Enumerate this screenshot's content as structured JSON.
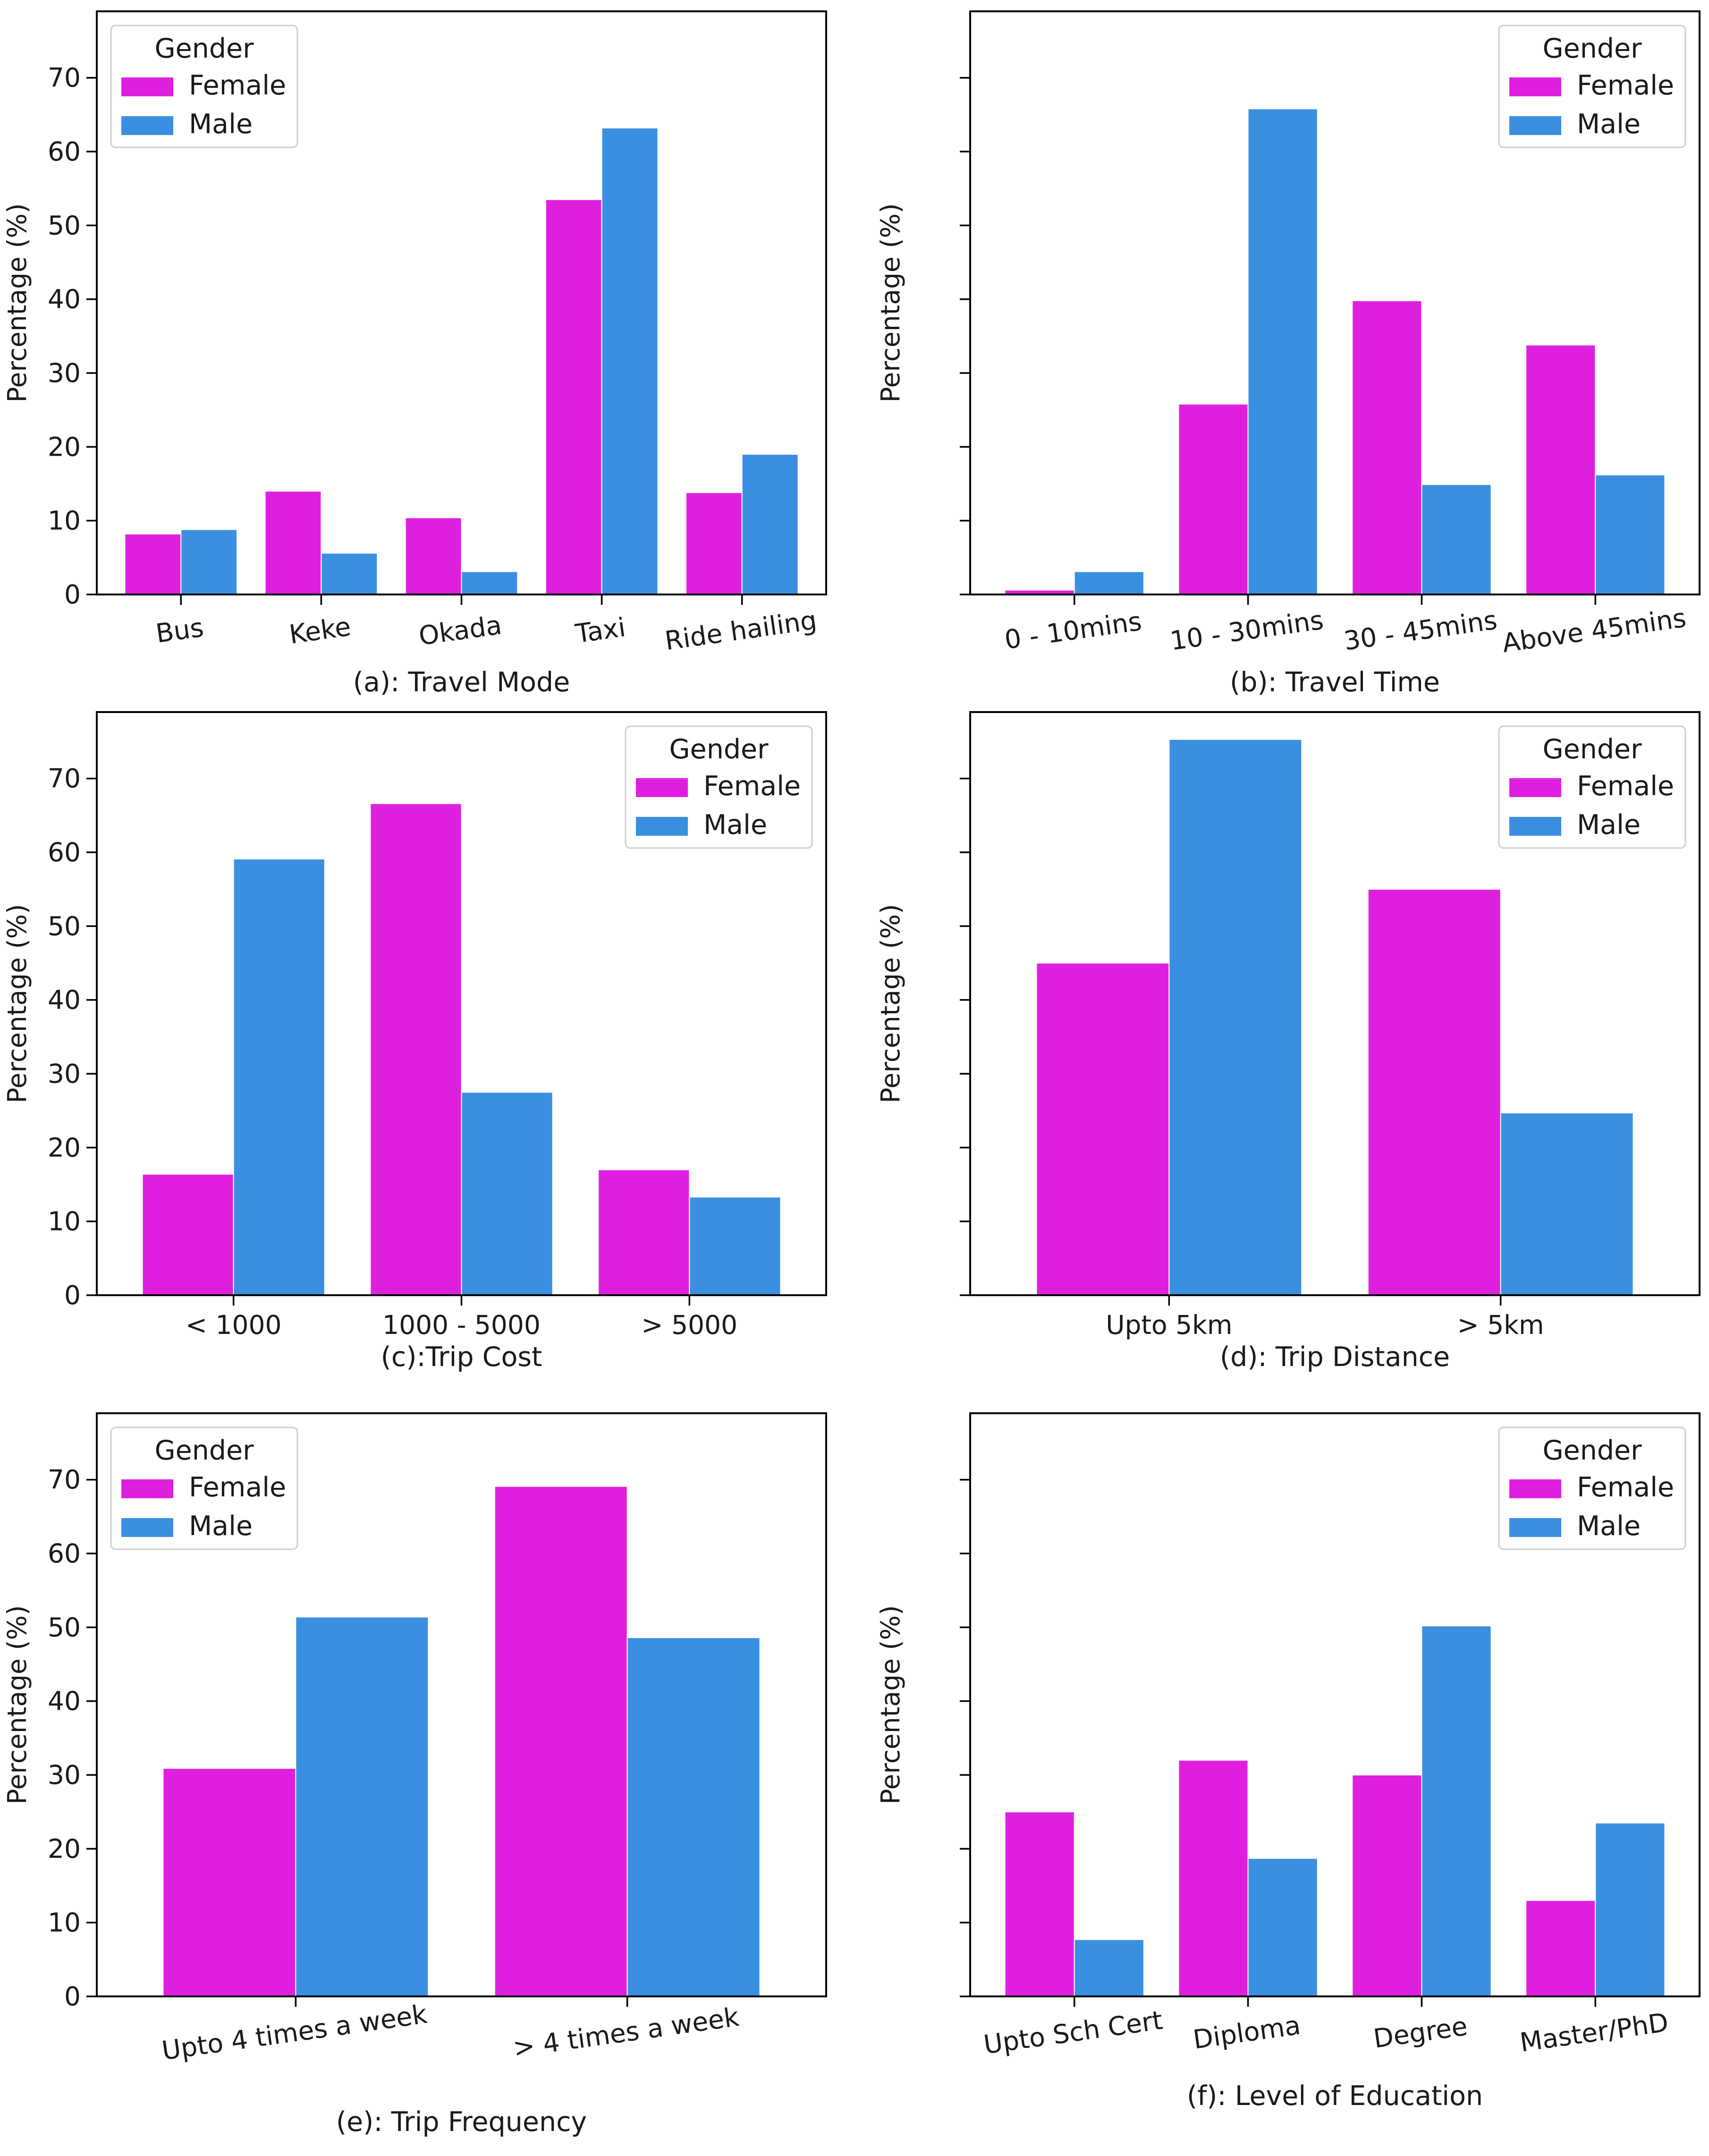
{
  "legend": {
    "title": "Gender",
    "entries": [
      {
        "name": "Female",
        "color": "#de20de"
      },
      {
        "name": "Male",
        "color": "#3b8fe0"
      }
    ]
  },
  "chart_data": [
    {
      "type": "bar",
      "title": "(a): Travel Mode",
      "xlabel": "(a): Travel Mode",
      "ylabel": "Percentage (%)",
      "categories": [
        "Bus",
        "Keke",
        "Okada",
        "Taxi",
        "Ride hailing"
      ],
      "series": [
        {
          "name": "Female",
          "values": [
            8.2,
            14.0,
            10.4,
            53.5,
            13.8
          ]
        },
        {
          "name": "Male",
          "values": [
            8.8,
            5.6,
            3.1,
            63.2,
            19.0
          ]
        }
      ],
      "ylim": [
        0,
        79
      ],
      "yticks": [
        0,
        10,
        20,
        30,
        40,
        50,
        60,
        70
      ],
      "show_tick_labels": true,
      "rotate_xticks": true,
      "legend_position": "top-left"
    },
    {
      "type": "bar",
      "title": "(b): Travel Time",
      "xlabel": "(b): Travel Time",
      "ylabel": "Percentage (%)",
      "categories": [
        "0 - 10mins",
        "10 - 30mins",
        "30 - 45mins",
        "Above 45mins"
      ],
      "series": [
        {
          "name": "Female",
          "values": [
            0.6,
            25.8,
            39.8,
            33.8
          ]
        },
        {
          "name": "Male",
          "values": [
            3.1,
            65.8,
            14.9,
            16.2
          ]
        }
      ],
      "ylim": [
        0,
        79
      ],
      "yticks": [
        0,
        10,
        20,
        30,
        40,
        50,
        60,
        70
      ],
      "show_tick_labels": false,
      "rotate_xticks": true,
      "legend_position": "top-right"
    },
    {
      "type": "bar",
      "title": "(c):Trip Cost",
      "xlabel": "(c):Trip Cost",
      "ylabel": "Percentage (%)",
      "categories": [
        "< 1000",
        "1000 - 5000",
        "> 5000"
      ],
      "series": [
        {
          "name": "Female",
          "values": [
            16.4,
            66.6,
            17.0
          ]
        },
        {
          "name": "Male",
          "values": [
            59.1,
            27.5,
            13.3
          ]
        }
      ],
      "ylim": [
        0,
        79
      ],
      "yticks": [
        0,
        10,
        20,
        30,
        40,
        50,
        60,
        70
      ],
      "show_tick_labels": true,
      "rotate_xticks": false,
      "legend_position": "top-right"
    },
    {
      "type": "bar",
      "title": "(d): Trip Distance",
      "xlabel": "(d): Trip Distance",
      "ylabel": "Percentage (%)",
      "categories": [
        "Upto 5km",
        ">  5km"
      ],
      "series": [
        {
          "name": "Female",
          "values": [
            45.0,
            55.0
          ]
        },
        {
          "name": "Male",
          "values": [
            75.3,
            24.7
          ]
        }
      ],
      "ylim": [
        0,
        79
      ],
      "yticks": [
        0,
        10,
        20,
        30,
        40,
        50,
        60,
        70
      ],
      "show_tick_labels": false,
      "rotate_xticks": false,
      "legend_position": "top-right"
    },
    {
      "type": "bar",
      "title": "(e): Trip Frequency",
      "xlabel": "(e): Trip Frequency",
      "ylabel": "Percentage (%)",
      "categories": [
        "Upto 4 times a week",
        "> 4 times a week"
      ],
      "series": [
        {
          "name": "Female",
          "values": [
            30.9,
            69.1
          ]
        },
        {
          "name": "Male",
          "values": [
            51.4,
            48.6
          ]
        }
      ],
      "ylim": [
        0,
        79
      ],
      "yticks": [
        0,
        10,
        20,
        30,
        40,
        50,
        60,
        70
      ],
      "show_tick_labels": true,
      "rotate_xticks": true,
      "legend_position": "top-left"
    },
    {
      "type": "bar",
      "title": "(f): Level of Education",
      "xlabel": "(f): Level of Education",
      "ylabel": "Percentage (%)",
      "categories": [
        "Upto Sch Cert",
        "Diploma",
        "Degree",
        "Master/PhD"
      ],
      "series": [
        {
          "name": "Female",
          "values": [
            25.0,
            32.0,
            30.0,
            13.0
          ]
        },
        {
          "name": "Male",
          "values": [
            7.7,
            18.7,
            50.2,
            23.5
          ]
        }
      ],
      "ylim": [
        0,
        79
      ],
      "yticks": [
        0,
        10,
        20,
        30,
        40,
        50,
        60,
        70
      ],
      "show_tick_labels": false,
      "rotate_xticks": true,
      "legend_position": "top-right"
    }
  ]
}
